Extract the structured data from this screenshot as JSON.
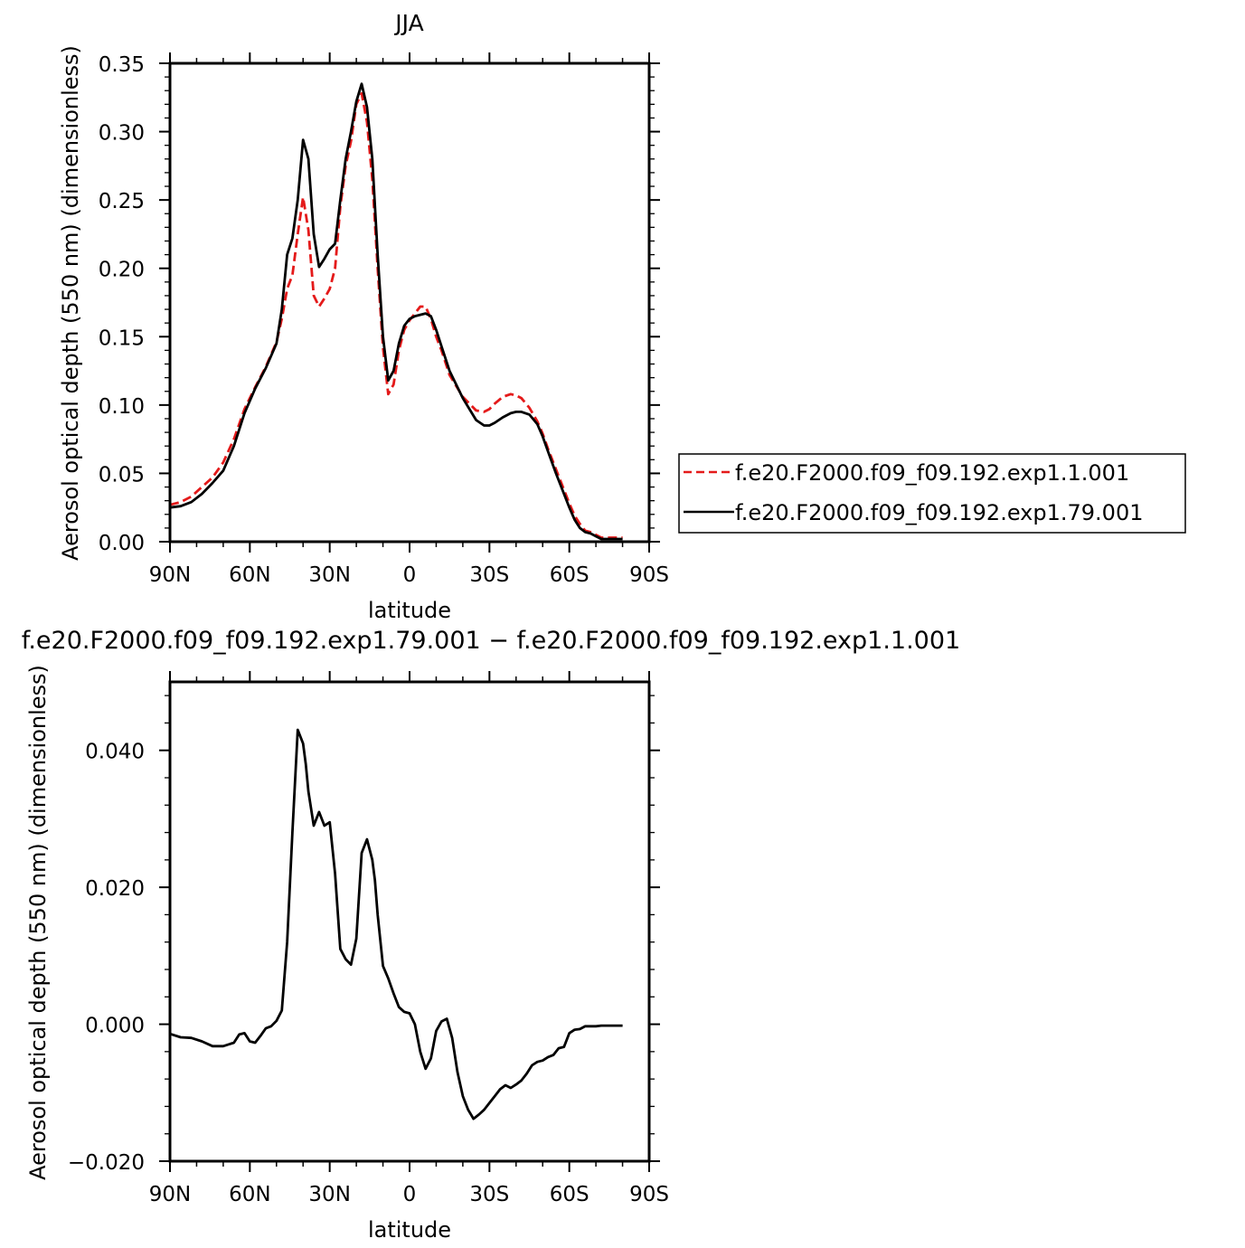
{
  "chart_data": [
    {
      "type": "line",
      "title": "JJA",
      "xlabel": "latitude",
      "ylabel": "Aerosol optical depth (550 nm) (dimensionless)",
      "x_ticks": [
        90,
        60,
        30,
        0,
        -30,
        -60,
        -90
      ],
      "x_tick_labels": [
        "90N",
        "60N",
        "30N",
        "0",
        "30S",
        "60S",
        "90S"
      ],
      "xlim": [
        90,
        -90
      ],
      "ylim": [
        0,
        0.35
      ],
      "y_ticks": [
        0,
        0.05,
        0.1,
        0.15,
        0.2,
        0.25,
        0.3,
        0.35
      ],
      "y_tick_labels": [
        "0.00",
        "0.05",
        "0.10",
        "0.15",
        "0.20",
        "0.25",
        "0.30",
        "0.35"
      ],
      "grid": false,
      "legend_position": "right",
      "series": [
        {
          "name": "f.e20.F2000.f09_f09.192.exp1.1.001",
          "color": "#e41a1a",
          "dash": "dashed",
          "x": [
            90,
            86,
            82,
            78,
            74,
            70,
            66,
            62,
            58,
            54,
            50,
            48,
            46,
            44,
            42,
            40,
            38,
            36,
            34,
            32,
            30,
            28,
            26,
            24,
            22,
            20,
            18,
            16,
            14,
            12,
            10,
            8,
            6,
            4,
            2,
            0,
            -2,
            -4,
            -6,
            -8,
            -10,
            -12,
            -15,
            -20,
            -25,
            -28,
            -30,
            -32,
            -35,
            -38,
            -40,
            -42,
            -45,
            -48,
            -50,
            -52,
            -55,
            -58,
            -60,
            -62,
            -64,
            -66,
            -68,
            -70,
            -72,
            -76,
            -80
          ],
          "y": [
            0.027,
            0.029,
            0.033,
            0.04,
            0.047,
            0.058,
            0.075,
            0.097,
            0.113,
            0.128,
            0.146,
            0.163,
            0.185,
            0.195,
            0.225,
            0.252,
            0.228,
            0.18,
            0.172,
            0.178,
            0.185,
            0.2,
            0.245,
            0.275,
            0.293,
            0.32,
            0.328,
            0.307,
            0.265,
            0.2,
            0.142,
            0.108,
            0.115,
            0.14,
            0.155,
            0.162,
            0.167,
            0.172,
            0.172,
            0.163,
            0.15,
            0.14,
            0.122,
            0.106,
            0.096,
            0.095,
            0.097,
            0.101,
            0.106,
            0.108,
            0.107,
            0.105,
            0.098,
            0.088,
            0.079,
            0.068,
            0.053,
            0.038,
            0.028,
            0.019,
            0.013,
            0.008,
            0.007,
            0.005,
            0.003,
            0.003,
            0.003
          ]
        },
        {
          "name": "f.e20.F2000.f09_f09.192.exp1.79.001",
          "color": "#000000",
          "dash": "solid",
          "x": [
            90,
            86,
            82,
            78,
            74,
            70,
            66,
            62,
            58,
            54,
            50,
            48,
            46,
            44,
            42,
            40,
            38,
            36,
            34,
            32,
            30,
            28,
            26,
            24,
            22,
            20,
            18,
            16,
            14,
            12,
            10,
            8,
            6,
            4,
            2,
            0,
            -2,
            -4,
            -6,
            -8,
            -10,
            -12,
            -15,
            -20,
            -25,
            -28,
            -30,
            -32,
            -35,
            -38,
            -40,
            -42,
            -45,
            -48,
            -50,
            -52,
            -55,
            -58,
            -60,
            -62,
            -64,
            -66,
            -68,
            -70,
            -72,
            -76,
            -80
          ],
          "y": [
            0.025,
            0.026,
            0.029,
            0.035,
            0.043,
            0.052,
            0.07,
            0.094,
            0.112,
            0.127,
            0.145,
            0.17,
            0.21,
            0.222,
            0.25,
            0.294,
            0.28,
            0.225,
            0.201,
            0.207,
            0.214,
            0.218,
            0.25,
            0.28,
            0.3,
            0.322,
            0.335,
            0.318,
            0.28,
            0.21,
            0.15,
            0.118,
            0.125,
            0.145,
            0.158,
            0.163,
            0.165,
            0.166,
            0.167,
            0.165,
            0.155,
            0.143,
            0.125,
            0.105,
            0.089,
            0.085,
            0.085,
            0.087,
            0.091,
            0.094,
            0.095,
            0.095,
            0.093,
            0.086,
            0.077,
            0.066,
            0.05,
            0.035,
            0.025,
            0.016,
            0.01,
            0.007,
            0.006,
            0.004,
            0.002,
            0.002,
            0.002
          ]
        }
      ]
    },
    {
      "type": "line",
      "title": "f.e20.F2000.f09_f09.192.exp1.79.001 − f.e20.F2000.f09_f09.192.exp1.1.001",
      "xlabel": "latitude",
      "ylabel": "Aerosol optical depth (550 nm) (dimensionless)",
      "x_ticks": [
        90,
        60,
        30,
        0,
        -30,
        -60,
        -90
      ],
      "x_tick_labels": [
        "90N",
        "60N",
        "30N",
        "0",
        "30S",
        "60S",
        "90S"
      ],
      "xlim": [
        90,
        -90
      ],
      "ylim": [
        -0.02,
        0.05
      ],
      "y_ticks": [
        -0.02,
        0,
        0.02,
        0.04
      ],
      "y_tick_labels": [
        "−0.020",
        "0.000",
        "0.020",
        "0.040"
      ],
      "grid": false,
      "series": [
        {
          "color": "#000000",
          "dash": "solid",
          "x": [
            90,
            86,
            82,
            78,
            74,
            70,
            66,
            64,
            62,
            60,
            58,
            56,
            54,
            52,
            50,
            48,
            46,
            44,
            42,
            40,
            39,
            38,
            36,
            34,
            32,
            30,
            28,
            26,
            24,
            22,
            20,
            18,
            16,
            14,
            13,
            12,
            10,
            8,
            6,
            4,
            2,
            0,
            -2,
            -4,
            -6,
            -8,
            -10,
            -12,
            -14,
            -16,
            -18,
            -20,
            -22,
            -24,
            -26,
            -28,
            -30,
            -32,
            -34,
            -36,
            -38,
            -40,
            -42,
            -44,
            -46,
            -48,
            -50,
            -52,
            -54,
            -56,
            -58,
            -60,
            -62,
            -64,
            -66,
            -68,
            -70,
            -72,
            -76,
            -80
          ],
          "y": [
            -0.0014,
            -0.0019,
            -0.002,
            -0.0025,
            -0.0032,
            -0.0032,
            -0.0027,
            -0.0015,
            -0.0013,
            -0.0025,
            -0.0027,
            -0.0017,
            -0.0006,
            -0.0003,
            0.0005,
            0.002,
            0.012,
            0.028,
            0.043,
            0.041,
            0.038,
            0.034,
            0.029,
            0.031,
            0.029,
            0.0295,
            0.022,
            0.011,
            0.0095,
            0.0087,
            0.0125,
            0.025,
            0.027,
            0.024,
            0.021,
            0.016,
            0.0085,
            0.0067,
            0.0045,
            0.0025,
            0.0018,
            0.0016,
            0.0,
            -0.004,
            -0.0065,
            -0.005,
            -0.001,
            0.0004,
            0.0008,
            -0.002,
            -0.007,
            -0.0105,
            -0.0125,
            -0.0138,
            -0.0132,
            -0.0125,
            -0.0115,
            -0.0105,
            -0.0095,
            -0.0089,
            -0.0093,
            -0.0088,
            -0.0082,
            -0.0072,
            -0.006,
            -0.0055,
            -0.0053,
            -0.0048,
            -0.0045,
            -0.0035,
            -0.0033,
            -0.0013,
            -0.0008,
            -0.0007,
            -0.0003,
            -0.0003,
            -0.0003,
            -0.0002,
            -0.0002,
            -0.0002
          ]
        }
      ]
    }
  ]
}
